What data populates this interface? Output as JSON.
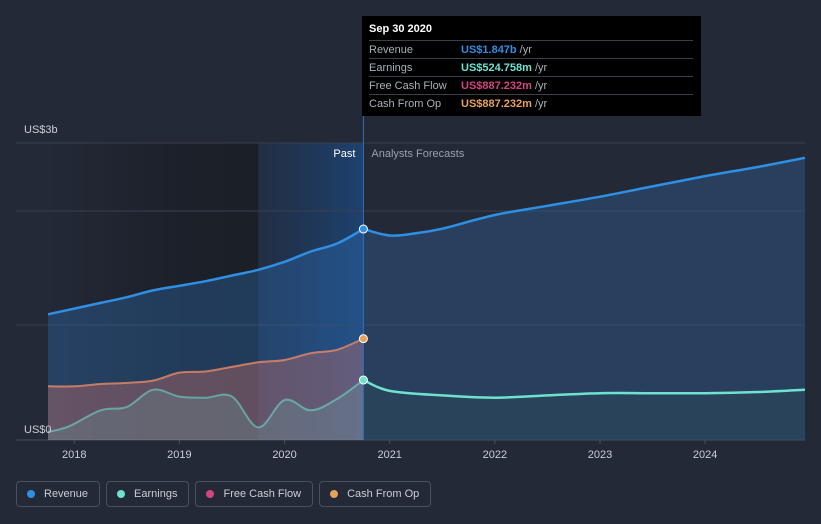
{
  "tooltip": {
    "date": "Sep 30 2020",
    "rows": [
      {
        "label": "Revenue",
        "value": "US$1.847b",
        "unit": "/yr",
        "color": "#2f8fe3"
      },
      {
        "label": "Earnings",
        "value": "US$524.758m",
        "unit": "/yr",
        "color": "#6fe2cf"
      },
      {
        "label": "Free Cash Flow",
        "value": "US$887.232m",
        "unit": "/yr",
        "color": "#d2457f"
      },
      {
        "label": "Cash From Op",
        "value": "US$887.232m",
        "unit": "/yr",
        "color": "#e8a15c"
      }
    ]
  },
  "legend": [
    {
      "label": "Revenue",
      "color": "#2f8fe3"
    },
    {
      "label": "Earnings",
      "color": "#6fe2cf"
    },
    {
      "label": "Free Cash Flow",
      "color": "#d2457f"
    },
    {
      "label": "Cash From Op",
      "color": "#e8a15c"
    }
  ],
  "chart_data": {
    "type": "area",
    "title": "",
    "xlabel": "",
    "ylabel": "",
    "y_top_label": "US$3b",
    "y_bottom_label": "US$0",
    "past_label": "Past",
    "forecast_label": "Analysts Forecasts",
    "xlim": [
      2017.75,
      2024.95
    ],
    "ylim": [
      0,
      2.6
    ],
    "divider_x": 2020.75,
    "x_ticks": [
      2018,
      2019,
      2020,
      2021,
      2022,
      2023,
      2024
    ],
    "x_tick_labels": [
      "2018",
      "2019",
      "2020",
      "2021",
      "2022",
      "2023",
      "2024"
    ],
    "series": [
      {
        "name": "Revenue",
        "color": "#2f8fe3",
        "points": [
          [
            2017.75,
            1.1
          ],
          [
            2018,
            1.15
          ],
          [
            2018.25,
            1.2
          ],
          [
            2018.5,
            1.25
          ],
          [
            2018.75,
            1.31
          ],
          [
            2019,
            1.35
          ],
          [
            2019.25,
            1.39
          ],
          [
            2019.5,
            1.44
          ],
          [
            2019.75,
            1.49
          ],
          [
            2020,
            1.56
          ],
          [
            2020.25,
            1.65
          ],
          [
            2020.5,
            1.72
          ],
          [
            2020.75,
            1.847
          ]
        ],
        "forecast": [
          [
            2020.75,
            1.847
          ],
          [
            2021,
            1.79
          ],
          [
            2021.25,
            1.81
          ],
          [
            2021.5,
            1.85
          ],
          [
            2022,
            1.97
          ],
          [
            2022.5,
            2.05
          ],
          [
            2023,
            2.13
          ],
          [
            2023.5,
            2.22
          ],
          [
            2024,
            2.31
          ],
          [
            2024.5,
            2.39
          ],
          [
            2024.95,
            2.47
          ]
        ]
      },
      {
        "name": "Earnings",
        "color": "#6fe2cf",
        "points": [
          [
            2017.75,
            0.07
          ],
          [
            2017.95,
            0.12
          ],
          [
            2018.25,
            0.26
          ],
          [
            2018.5,
            0.29
          ],
          [
            2018.75,
            0.44
          ],
          [
            2019,
            0.38
          ],
          [
            2019.25,
            0.37
          ],
          [
            2019.5,
            0.38
          ],
          [
            2019.75,
            0.11
          ],
          [
            2020,
            0.35
          ],
          [
            2020.25,
            0.26
          ],
          [
            2020.5,
            0.36
          ],
          [
            2020.75,
            0.525
          ]
        ],
        "forecast": [
          [
            2020.75,
            0.525
          ],
          [
            2021,
            0.43
          ],
          [
            2021.5,
            0.39
          ],
          [
            2022,
            0.37
          ],
          [
            2022.5,
            0.39
          ],
          [
            2023,
            0.41
          ],
          [
            2023.5,
            0.41
          ],
          [
            2024,
            0.41
          ],
          [
            2024.5,
            0.42
          ],
          [
            2024.95,
            0.44
          ]
        ]
      },
      {
        "name": "Cash From Op",
        "color": "#e8a15c",
        "points": [
          [
            2017.75,
            0.47
          ],
          [
            2018,
            0.47
          ],
          [
            2018.25,
            0.49
          ],
          [
            2018.5,
            0.5
          ],
          [
            2018.75,
            0.52
          ],
          [
            2019,
            0.59
          ],
          [
            2019.25,
            0.6
          ],
          [
            2019.5,
            0.64
          ],
          [
            2019.75,
            0.68
          ],
          [
            2020,
            0.7
          ],
          [
            2020.25,
            0.76
          ],
          [
            2020.5,
            0.79
          ],
          [
            2020.75,
            0.887
          ]
        ]
      },
      {
        "name": "Free Cash Flow",
        "color": "#d2457f",
        "points": [
          [
            2017.75,
            0.47
          ],
          [
            2018,
            0.47
          ],
          [
            2018.25,
            0.49
          ],
          [
            2018.5,
            0.5
          ],
          [
            2018.75,
            0.52
          ],
          [
            2019,
            0.59
          ],
          [
            2019.25,
            0.6
          ],
          [
            2019.5,
            0.64
          ],
          [
            2019.75,
            0.68
          ],
          [
            2020,
            0.7
          ],
          [
            2020.25,
            0.76
          ],
          [
            2020.5,
            0.79
          ],
          [
            2020.75,
            0.887
          ]
        ]
      }
    ]
  }
}
